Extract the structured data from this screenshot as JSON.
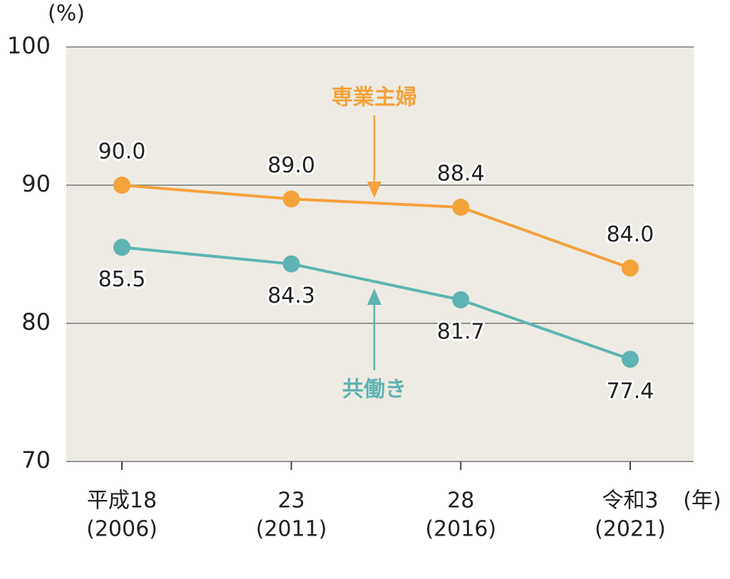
{
  "chart_data": {
    "type": "line",
    "y_label": "(%)",
    "x_label": "(年)",
    "categories": [
      "平成18",
      "23",
      "28",
      "令和3"
    ],
    "category_years": [
      "(2006)",
      "(2011)",
      "(2016)",
      "(2021)"
    ],
    "series": [
      {
        "name": "専業主婦",
        "color": "#f4a23c",
        "values": [
          90.0,
          89.0,
          88.4,
          84.0
        ],
        "value_labels": [
          "90.0",
          "89.0",
          "88.4",
          "84.0"
        ]
      },
      {
        "name": "共働き",
        "color": "#5fb3b3",
        "values": [
          85.5,
          84.3,
          81.7,
          77.4
        ],
        "value_labels": [
          "85.5",
          "84.3",
          "81.7",
          "77.4"
        ]
      }
    ],
    "ylim": [
      70,
      100
    ],
    "yticks": [
      70,
      80,
      90,
      100
    ],
    "grid": true,
    "background": "#edebe3"
  }
}
